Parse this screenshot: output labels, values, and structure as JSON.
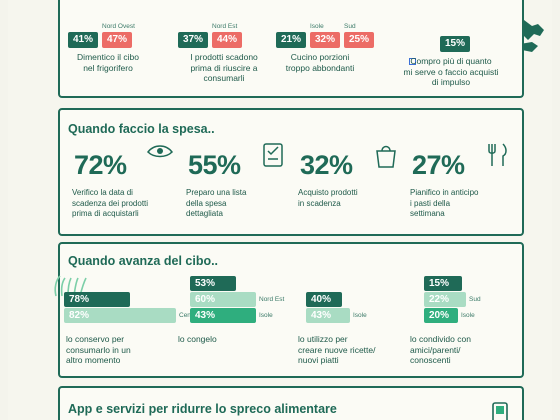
{
  "top_section": {
    "groups": [
      {
        "bars": [
          {
            "value": "41%",
            "style": "dark"
          },
          {
            "value": "47%",
            "style": "red",
            "label": "Nord Ovest"
          }
        ],
        "caption_lines": [
          "Dimentico il cibo",
          "nel frigorifero"
        ]
      },
      {
        "bars": [
          {
            "value": "37%",
            "style": "dark"
          },
          {
            "value": "44%",
            "style": "red",
            "label": "Nord Est"
          }
        ],
        "caption_lines": [
          "I prodotti scadono",
          "prima di riuscire a",
          "consumarli"
        ]
      },
      {
        "bars": [
          {
            "value": "21%",
            "style": "dark"
          },
          {
            "value": "32%",
            "style": "red",
            "label": "Isole"
          },
          {
            "value": "25%",
            "style": "red",
            "label": "Sud"
          }
        ],
        "caption_lines": [
          "Cucino porzioni",
          "troppo abbondanti"
        ]
      },
      {
        "bars": [
          {
            "value": "15%",
            "style": "dark"
          }
        ],
        "caption_lines": [
          "Compro più di quanto",
          "mi serve o faccio acquisti",
          "di impulso"
        ]
      }
    ]
  },
  "spesa_section": {
    "title": "Quando faccio la spesa..",
    "stats": [
      {
        "value": "72%",
        "caption_lines": [
          "Verifico la data di",
          "scadenza dei prodotti",
          "prima di acquistarli"
        ],
        "icon": "eye-icon"
      },
      {
        "value": "55%",
        "caption_lines": [
          "Preparo una lista",
          "della spesa",
          "dettagliata"
        ],
        "icon": "checklist-icon"
      },
      {
        "value": "32%",
        "caption_lines": [
          "Acquisto prodotti",
          "in scadenza"
        ],
        "icon": "shopping-bag-icon"
      },
      {
        "value": "27%",
        "caption_lines": [
          "Pianifico in anticipo",
          "i pasti della",
          "settimana"
        ],
        "icon": "fork-knife-icon"
      }
    ]
  },
  "avanza_section": {
    "title": "Quando avanza del cibo..",
    "groups": [
      {
        "bars": [
          {
            "value": "78%",
            "style": "dark"
          },
          {
            "value": "82%",
            "style": "light",
            "label": "Centro"
          }
        ],
        "caption_lines": [
          "lo conservo  per",
          "consumarlo in un",
          "altro momento"
        ]
      },
      {
        "bars": [
          {
            "value": "53%",
            "style": "dark"
          },
          {
            "value": "60%",
            "style": "light",
            "label": "Nord Est"
          },
          {
            "value": "43%",
            "style": "mid",
            "label": "Isole"
          }
        ],
        "caption_lines": [
          "lo congelo"
        ]
      },
      {
        "bars": [
          {
            "value": "40%",
            "style": "dark"
          },
          {
            "value": "43%",
            "style": "light",
            "label": "Isole"
          }
        ],
        "caption_lines": [
          "lo utilizzo per",
          "creare nuove ricette/",
          "nuovi piatti"
        ]
      },
      {
        "bars": [
          {
            "value": "15%",
            "style": "dark"
          },
          {
            "value": "22%",
            "style": "light",
            "label": "Sud"
          },
          {
            "value": "20%",
            "style": "mid",
            "label": "Isole"
          }
        ],
        "caption_lines": [
          "lo condivido con",
          "amici/parenti/",
          "conoscenti"
        ]
      }
    ]
  },
  "app_section": {
    "title": "App e servizi per ridurre lo spreco alimentare"
  },
  "colors": {
    "dark_green": "#1f6a57",
    "red": "#ec6c66",
    "light_green": "#a9dcc3",
    "mid_green": "#2fae7e",
    "background": "#f6f6ee"
  }
}
